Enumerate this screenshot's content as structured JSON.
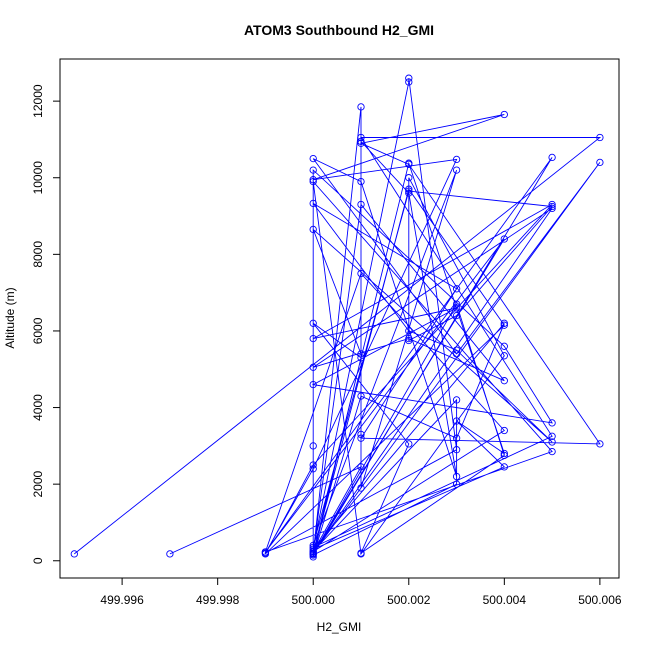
{
  "chart_data": {
    "type": "line",
    "title": "ATOM3 Southbound H2_GMI",
    "xlabel": "H2_GMI",
    "ylabel": "Altitude (m)",
    "xlim": [
      499.9947,
      500.0064
    ],
    "ylim": [
      -450,
      13100
    ],
    "x_ticks": [
      499.996,
      499.998,
      500.0,
      500.002,
      500.004,
      500.006
    ],
    "x_tick_labels": [
      "499.996",
      "499.998",
      "500.000",
      "500.002",
      "500.004",
      "500.006"
    ],
    "y_ticks": [
      0,
      2000,
      4000,
      6000,
      8000,
      10000,
      12000
    ],
    "y_tick_labels": [
      "0",
      "2000",
      "4000",
      "6000",
      "8000",
      "10000",
      "12000"
    ],
    "grid": false,
    "legend": "none",
    "marker": "open-circle",
    "color": "#0000ff",
    "series": [
      {
        "x": [
          499.995,
          500.006,
          500.001,
          500.005,
          500.0,
          500.002,
          500.002,
          500.003,
          499.999,
          500.0,
          500.003,
          500.0,
          500.004,
          500.001,
          500.002,
          500.006,
          500.001,
          500.003,
          500.0,
          500.002,
          500.003,
          500.005,
          500.0,
          500.001,
          500.001,
          500.001,
          500.002,
          500.003,
          500.001,
          500.0,
          500.003,
          500.006,
          500.0,
          500.005,
          500.0,
          500.002,
          500.004,
          500.001,
          500.0,
          500.003,
          500.003,
          500.0,
          500.005,
          499.999,
          500.004,
          500.0,
          500.002,
          500.004,
          500.003,
          500.004,
          500.0,
          500.004,
          500.003,
          500.001,
          500.0,
          500.001,
          500.0,
          500.002,
          500.001,
          500.004,
          500.003,
          500.0,
          500.0,
          500.0,
          500.004,
          500.005,
          500.0,
          500.003,
          500.0,
          500.005,
          500.0,
          499.999,
          500.004,
          500.002,
          500.0,
          500.001,
          500.001,
          500.003,
          500.0,
          500.002,
          500.005,
          500.003,
          500.002,
          500.002,
          500.004,
          500.001,
          500.0,
          500.005,
          499.999,
          500.001,
          500.004,
          500.0,
          500.001,
          499.997
        ],
        "y": [
          180,
          11050,
          11050,
          3250,
          350,
          12500,
          12600,
          2900,
          200,
          2400,
          10480,
          9950,
          11650,
          10900,
          10350,
          3050,
          3200,
          7100,
          9330,
          6000,
          5500,
          3100,
          8650,
          5400,
          3300,
          10950,
          9600,
          2200,
          9900,
          10500,
          5400,
          10400,
          200,
          9200,
          5050,
          5800,
          4700,
          9300,
          250,
          4200,
          2000,
          150,
          10530,
          230,
          8400,
          200,
          10380,
          2800,
          3650,
          2450,
          300,
          6200,
          3200,
          4300,
          100,
          5300,
          6200,
          3050,
          200,
          2750,
          6700,
          180,
          3000,
          10200,
          5600,
          3600,
          4600,
          6600,
          5800,
          9300,
          2500,
          180,
          6150,
          9700,
          180,
          11850,
          1900,
          10200,
          400,
          9650,
          9250,
          6400,
          5750,
          10000,
          5350,
          180,
          9900,
          2850,
          230,
          7500,
          3400,
          240,
          2450,
          180
        ]
      }
    ]
  }
}
